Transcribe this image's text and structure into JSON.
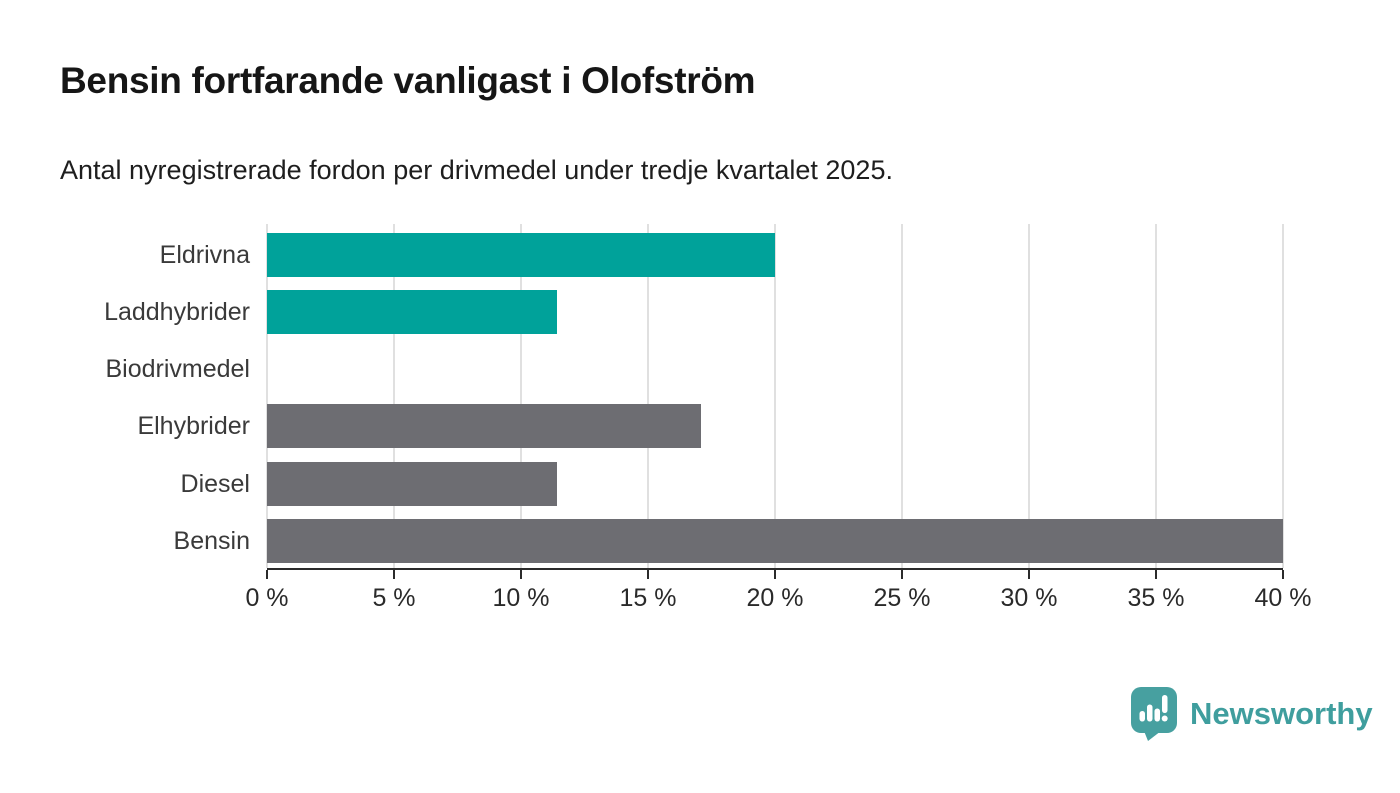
{
  "chart_data": {
    "type": "bar",
    "orientation": "horizontal",
    "title": "Bensin fortfarande vanligast i Olofström",
    "subtitle": "Antal nyregistrerade fordon per drivmedel under tredje kvartalet 2025.",
    "categories": [
      "Eldrivna",
      "Laddhybrider",
      "Biodrivmedel",
      "Elhybrider",
      "Diesel",
      "Bensin"
    ],
    "values": [
      20,
      11.4,
      0,
      17.1,
      11.4,
      40
    ],
    "unit": "%",
    "xlabel": "",
    "ylabel": "",
    "xlim": [
      0,
      40
    ],
    "x_ticks": [
      0,
      5,
      10,
      15,
      20,
      25,
      30,
      35,
      40
    ],
    "x_tick_labels": [
      "0 %",
      "5 %",
      "10 %",
      "15 %",
      "20 %",
      "25 %",
      "30 %",
      "35 %",
      "40 %"
    ],
    "grid": "vertical",
    "legend": "none",
    "bar_colors": [
      "#00a29a",
      "#00a29a",
      "#00a29a",
      "#6d6d72",
      "#6d6d72",
      "#6d6d72"
    ],
    "accent_teal": "#00a29a",
    "neutral_gray": "#6d6d72",
    "gridline_color": "#e0e0e0",
    "axis_color": "#2b2b2b"
  },
  "footer": {
    "brand": "Newsworthy",
    "brand_color": "#3f9e9e"
  }
}
